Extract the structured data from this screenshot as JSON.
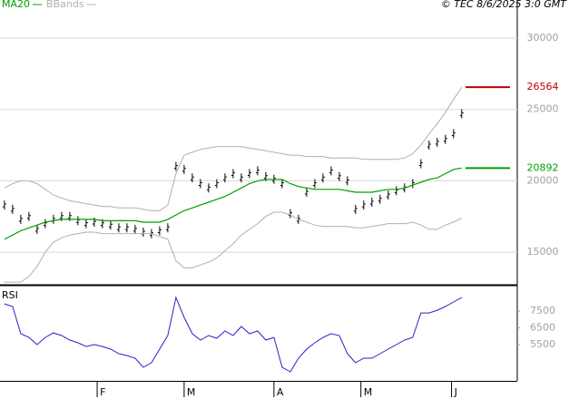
{
  "chart_data": [
    {
      "type": "stock",
      "annotation": "© TEC 8/6/2025 3:0 GMT",
      "x": [
        0,
        2,
        4,
        6,
        8,
        10,
        12,
        14,
        16,
        18,
        20,
        22,
        24,
        26,
        28,
        30,
        32,
        34,
        36,
        38,
        40,
        42,
        44,
        46,
        48,
        50,
        52,
        54,
        56,
        58,
        60,
        62,
        64,
        66,
        68,
        70,
        72,
        74,
        76,
        78,
        80,
        82,
        84,
        86,
        88,
        90,
        92,
        94,
        96,
        98,
        100,
        102,
        104,
        106,
        108,
        110,
        112
      ],
      "xlim": [
        -1.1,
        125.6
      ],
      "ylim": [
        12780,
        32670
      ],
      "yticks": [
        15000,
        20000,
        25000,
        30000
      ],
      "grid": true,
      "series": [
        {
          "color": "#000000",
          "values": [
            18300,
            18000,
            17300,
            17500,
            16600,
            17000,
            17300,
            17500,
            17500,
            17200,
            17000,
            17100,
            17000,
            16900,
            16700,
            16700,
            16600,
            16400,
            16300,
            16500,
            16700,
            21000,
            20800,
            20200,
            19800,
            19500,
            19800,
            20200,
            20500,
            20200,
            20500,
            20700,
            20300,
            20100,
            19800,
            17700,
            17300,
            19200,
            19800,
            20200,
            20700,
            20300,
            20000,
            18000,
            18300,
            18500,
            18700,
            19000,
            19300,
            19500,
            19800,
            21200,
            22500,
            22700,
            22900,
            23300,
            24700
          ]
        },
        {
          "name": "MA20",
          "color": "#00a000",
          "values": [
            15900,
            16200,
            16500,
            16700,
            16900,
            17100,
            17200,
            17300,
            17300,
            17300,
            17300,
            17300,
            17200,
            17200,
            17200,
            17200,
            17200,
            17100,
            17100,
            17100,
            17300,
            17600,
            17900,
            18100,
            18300,
            18500,
            18700,
            18900,
            19200,
            19500,
            19800,
            20000,
            20100,
            20100,
            20100,
            19800,
            19600,
            19500,
            19400,
            19400,
            19400,
            19400,
            19300,
            19200,
            19200,
            19200,
            19300,
            19400,
            19400,
            19500,
            19700,
            19900,
            20100,
            20200,
            20500,
            20800,
            20892
          ]
        },
        {
          "name": "BBands",
          "color": "#b0b0b0",
          "upper": [
            19500,
            19800,
            20000,
            20000,
            19800,
            19400,
            19000,
            18800,
            18600,
            18500,
            18400,
            18300,
            18200,
            18200,
            18100,
            18100,
            18100,
            18000,
            17900,
            17900,
            18300,
            20500,
            21800,
            22000,
            22200,
            22300,
            22400,
            22400,
            22400,
            22400,
            22300,
            22200,
            22100,
            22000,
            21900,
            21800,
            21800,
            21700,
            21700,
            21700,
            21600,
            21600,
            21600,
            21600,
            21500,
            21500,
            21500,
            21500,
            21500,
            21600,
            21900,
            22500,
            23300,
            24000,
            24800,
            25700,
            26564
          ],
          "lower": [
            12900,
            12900,
            12900,
            13300,
            14000,
            15000,
            15700,
            16000,
            16200,
            16300,
            16400,
            16400,
            16300,
            16300,
            16300,
            16300,
            16300,
            16300,
            16300,
            16100,
            15900,
            14400,
            13900,
            13900,
            14100,
            14300,
            14600,
            15100,
            15600,
            16200,
            16600,
            17000,
            17500,
            17800,
            17800,
            17600,
            17300,
            17100,
            16900,
            16800,
            16800,
            16800,
            16800,
            16700,
            16700,
            16800,
            16900,
            17000,
            17000,
            17000,
            17100,
            16900,
            16600,
            16600,
            16900,
            17100,
            17400
          ]
        }
      ],
      "markers": [
        {
          "value": 26564,
          "color": "#c00000"
        },
        {
          "value": 20892,
          "color": "#00a000"
        }
      ]
    },
    {
      "type": "line",
      "title": "RSI",
      "x": [
        0,
        2,
        4,
        6,
        8,
        10,
        12,
        14,
        16,
        18,
        20,
        22,
        24,
        26,
        28,
        30,
        32,
        34,
        36,
        38,
        40,
        42,
        44,
        46,
        48,
        50,
        52,
        54,
        56,
        58,
        60,
        62,
        64,
        66,
        68,
        70,
        72,
        74,
        76,
        78,
        80,
        82,
        84,
        86,
        88,
        90,
        92,
        94,
        96,
        98,
        100,
        102,
        104,
        106,
        108,
        110,
        112
      ],
      "xlim": [
        -1.1,
        125.6
      ],
      "xticks": [
        {
          "value": 22.7,
          "label": "F"
        },
        {
          "value": 44,
          "label": "M"
        },
        {
          "value": 66,
          "label": "A"
        },
        {
          "value": 87.3,
          "label": "M"
        },
        {
          "value": 109.5,
          "label": "J"
        }
      ],
      "ylim": [
        3340,
        8960
      ],
      "yticks": [
        5500,
        6500,
        7500
      ],
      "series": [
        {
          "color": "#2424c8",
          "values": [
            7930,
            7770,
            6150,
            5930,
            5500,
            5930,
            6200,
            6040,
            5770,
            5610,
            5390,
            5500,
            5390,
            5230,
            4960,
            4850,
            4690,
            4150,
            4420,
            5230,
            6040,
            8310,
            7120,
            6150,
            5770,
            6040,
            5880,
            6310,
            6040,
            6580,
            6150,
            6310,
            5770,
            5930,
            4150,
            3880,
            4690,
            5230,
            5610,
            5930,
            6150,
            6040,
            4960,
            4420,
            4690,
            4690,
            4960,
            5230,
            5500,
            5770,
            5930,
            7390,
            7390,
            7550,
            7770,
            8040,
            8310
          ]
        }
      ]
    }
  ]
}
